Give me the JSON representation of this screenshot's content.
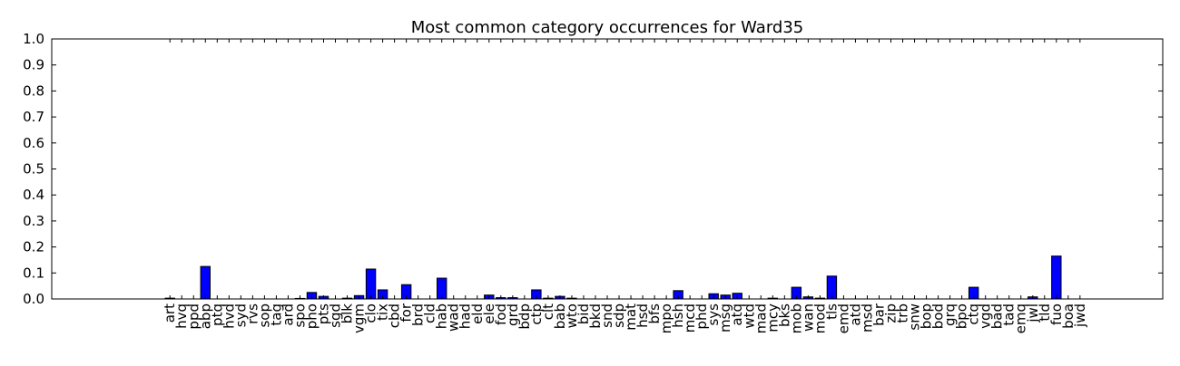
{
  "chart_data": {
    "type": "bar",
    "title": "Most common category occurrences for Ward35",
    "xlabel": "",
    "ylabel": "",
    "ylim": [
      0,
      1.0
    ],
    "yticks": [
      "0.0",
      "0.1",
      "0.2",
      "0.3",
      "0.4",
      "0.5",
      "0.6",
      "0.7",
      "0.8",
      "0.9",
      "1.0"
    ],
    "grid": false,
    "bar_color": "#0000ff",
    "categories": [
      "art",
      "hvq",
      "ppd",
      "abp",
      "ptq",
      "hvd",
      "syd",
      "rvs",
      "sop",
      "tag",
      "ard",
      "spo",
      "pho",
      "pts",
      "sgd",
      "blk",
      "vgm",
      "clo",
      "tix",
      "cbd",
      "for",
      "brd",
      "cld",
      "hab",
      "wad",
      "had",
      "eld",
      "ele",
      "fod",
      "grd",
      "bdp",
      "ctp",
      "clt",
      "bab",
      "wto",
      "bid",
      "bkd",
      "snd",
      "sdp",
      "mat",
      "hsd",
      "bfs",
      "mpo",
      "hsh",
      "mcd",
      "phd",
      "sys",
      "msg",
      "atq",
      "wtd",
      "mad",
      "mcy",
      "bks",
      "mob",
      "wan",
      "mod",
      "tls",
      "emd",
      "atd",
      "msd",
      "bar",
      "zip",
      "trb",
      "snw",
      "bop",
      "bod",
      "grq",
      "bpo",
      "ctq",
      "vgd",
      "bad",
      "tad",
      "emq",
      "jwl",
      "tld",
      "fuo",
      "boa",
      "jwd"
    ],
    "values": [
      0.003,
      0,
      0,
      0.125,
      0,
      0,
      0,
      0,
      0,
      0,
      0,
      0.002,
      0.025,
      0.01,
      0,
      0.003,
      0.013,
      0.115,
      0.035,
      0,
      0.055,
      0,
      0,
      0.08,
      0,
      0,
      0,
      0.015,
      0.005,
      0.005,
      0,
      0.035,
      0.003,
      0.01,
      0.003,
      0,
      0,
      0,
      0,
      0,
      0,
      0,
      0,
      0.032,
      0,
      0,
      0.02,
      0.015,
      0.022,
      0,
      0,
      0.003,
      0,
      0.045,
      0.008,
      0.003,
      0.088,
      0,
      0,
      0,
      0,
      0,
      0,
      0,
      0,
      0,
      0,
      0,
      0.045,
      0,
      0,
      0,
      0,
      0.008,
      0,
      0.165,
      0,
      0
    ]
  }
}
